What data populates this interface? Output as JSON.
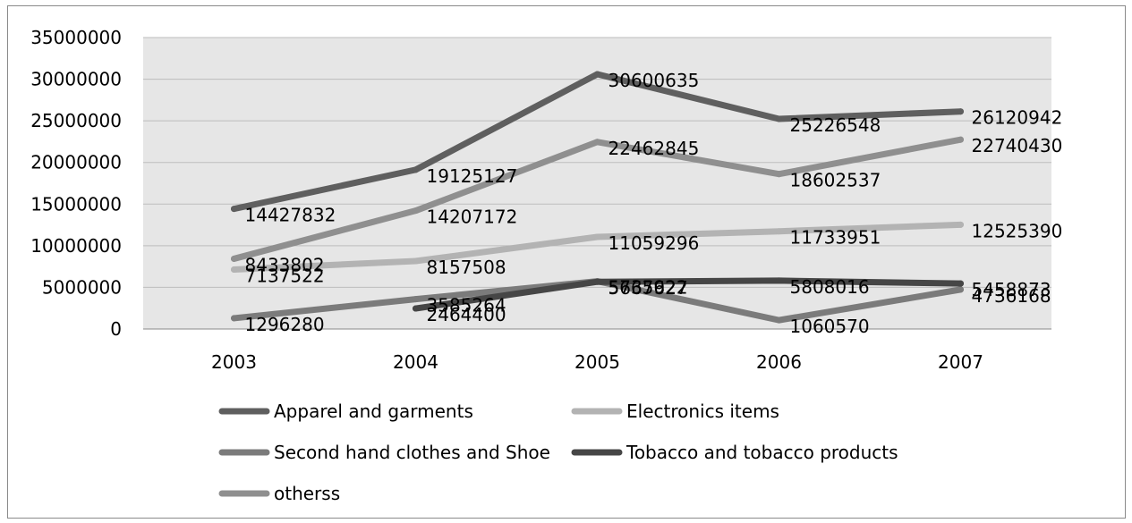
{
  "chart_data": {
    "type": "line",
    "title": "",
    "xlabel": "",
    "ylabel": "",
    "categories": [
      "2003",
      "2004",
      "2005",
      "2006",
      "2007"
    ],
    "ylim": [
      0,
      35000000
    ],
    "yticks": [
      "0",
      "5000000",
      "10000000",
      "15000000",
      "20000000",
      "25000000",
      "30000000",
      "35000000"
    ],
    "grid": "horizontal",
    "legend_position": "bottom",
    "series": [
      {
        "name": "Apparel and garments",
        "color": "#5f5f5f",
        "values": [
          14427832,
          19125127,
          30600635,
          25226548,
          26120942
        ]
      },
      {
        "name": "Electronics items",
        "color": "#b3b3b3",
        "values": [
          7137522,
          8157508,
          11059296,
          11733951,
          12525390
        ]
      },
      {
        "name": "Second hand clothes and Shoe",
        "color": "#7b7b7b",
        "values": [
          1296280,
          3585264,
          5735922,
          1060570,
          4736168
        ]
      },
      {
        "name": "Tobacco and tobacco products",
        "color": "#464646",
        "values": [
          null,
          2464400,
          5667627,
          5808016,
          5458873
        ]
      },
      {
        "name": "otherss",
        "color": "#8f8f8f",
        "values": [
          8433802,
          14207172,
          22462845,
          18602537,
          22740430
        ]
      }
    ]
  }
}
